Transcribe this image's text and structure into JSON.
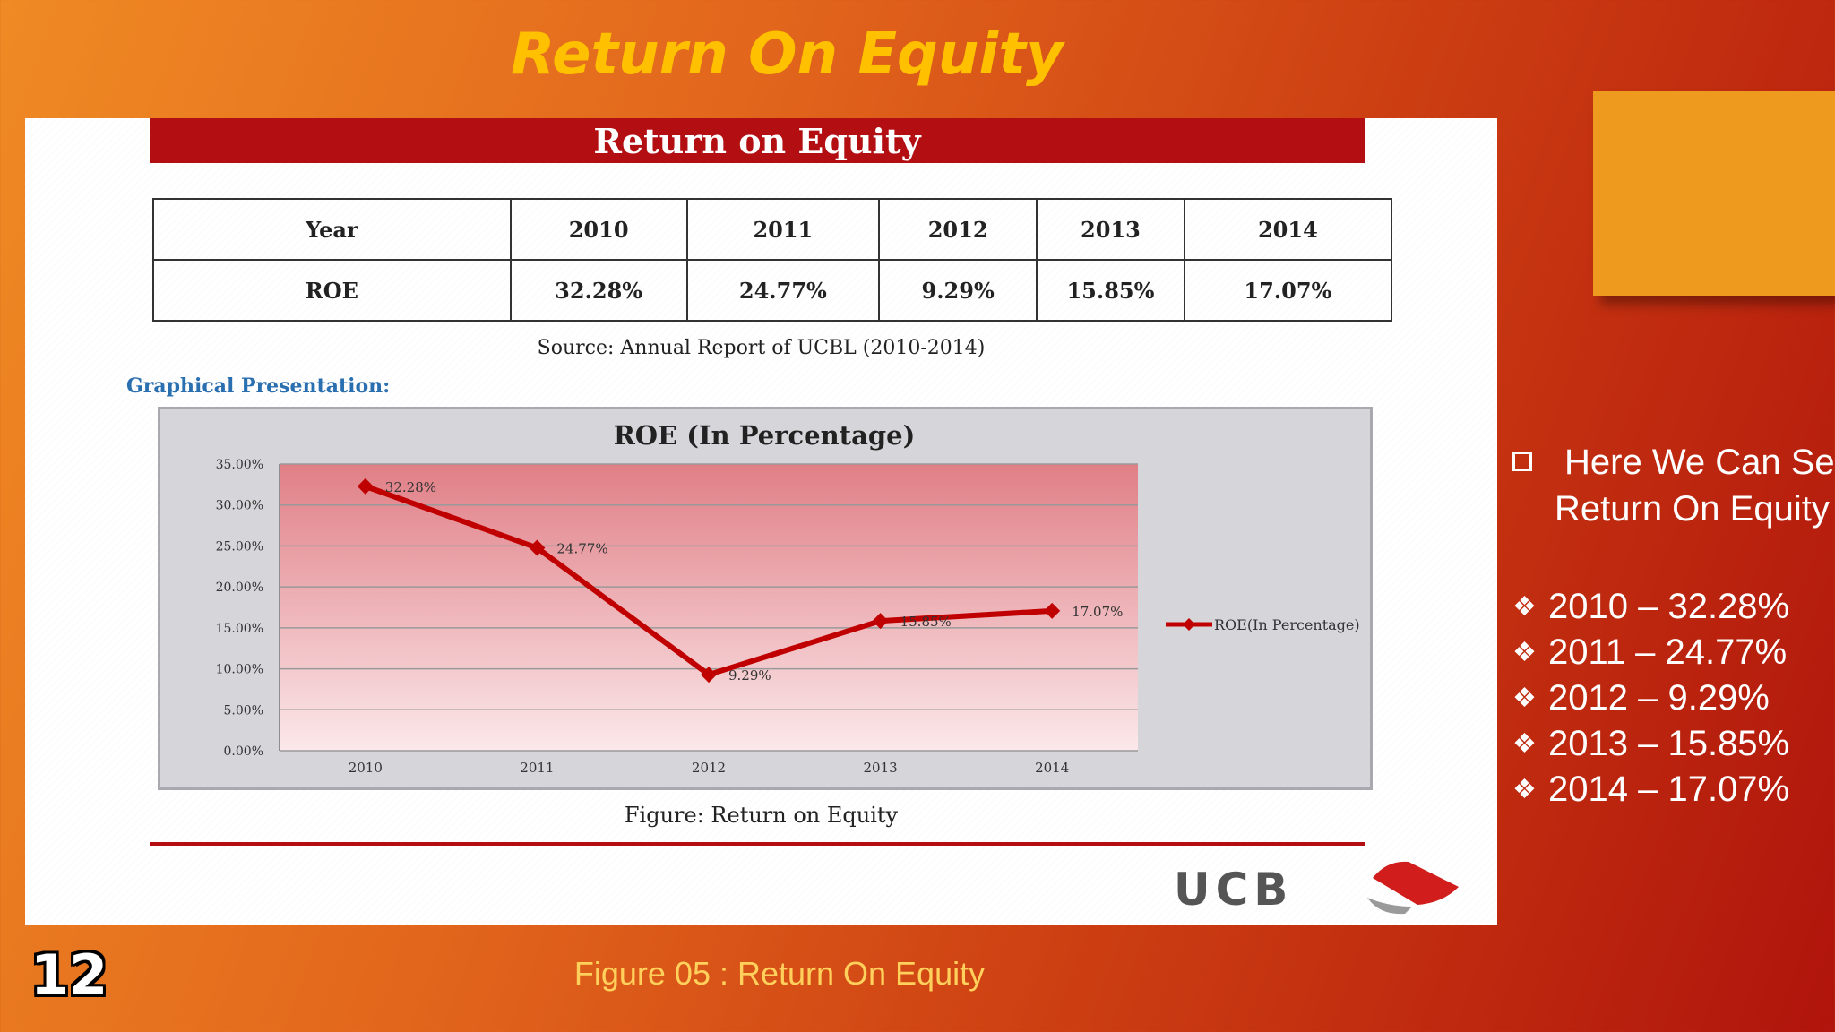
{
  "slide": {
    "title": "Return On Equity",
    "number": "12",
    "footer_caption": "Figure 05 : Return On Equity"
  },
  "figure": {
    "banner_title": "Return on Equity",
    "table": {
      "header_label": "Year",
      "years": [
        "2010",
        "2011",
        "2012",
        "2013",
        "2014"
      ],
      "row_label": "ROE",
      "values": [
        "32.28%",
        "24.77%",
        "9.29%",
        "15.85%",
        "17.07%"
      ]
    },
    "source_note": "Source: Annual Report of UCBL (2010-2014)",
    "graph_heading": "Graphical Presentation:",
    "caption": "Figure: Return on Equity",
    "logo_text": "UCB"
  },
  "side_panel": {
    "intro_lines": [
      "Here We Can See",
      "Return On Equity"
    ],
    "items": [
      "2010 – 32.28%",
      "2011 – 24.77%",
      "2012 – 9.29%",
      "2013 – 15.85%",
      "2014 – 17.07%"
    ]
  },
  "colors": {
    "accent_red": "#b30f12",
    "title_yellow": "#ffc000",
    "orange_box": "#ed9a1e",
    "line_color": "#c00000"
  },
  "chart_data": {
    "type": "line",
    "title": "ROE (In Percentage)",
    "categories": [
      "2010",
      "2011",
      "2012",
      "2013",
      "2014"
    ],
    "series": [
      {
        "name": "ROE(In Percentage)",
        "values": [
          32.28,
          24.77,
          9.29,
          15.85,
          17.07
        ],
        "labels": [
          "32.28%",
          "24.77%",
          "9.29%",
          "15.85%",
          "17.07%"
        ]
      }
    ],
    "y_ticks": [
      "0.00%",
      "5.00%",
      "10.00%",
      "15.00%",
      "20.00%",
      "25.00%",
      "30.00%",
      "35.00%"
    ],
    "ylim": [
      0,
      35
    ],
    "grid": true,
    "legend_position": "right"
  }
}
